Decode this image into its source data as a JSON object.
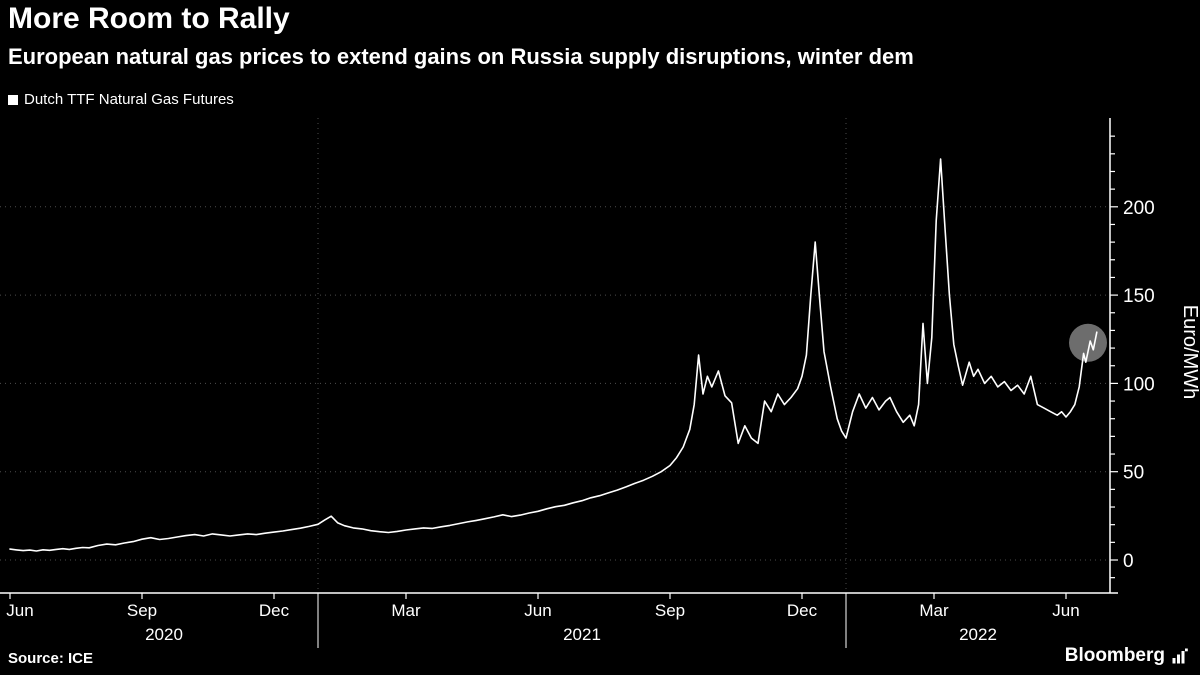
{
  "header": {
    "title": "More Room to Rally",
    "subtitle": "European natural gas prices to extend gains on Russia supply disruptions, winter dem"
  },
  "legend": {
    "label": "Dutch TTF Natural Gas Futures",
    "swatch_color": "#ffffff"
  },
  "footer": {
    "source": "Source: ICE",
    "brand": "Bloomberg"
  },
  "colors": {
    "background": "#000000",
    "text": "#ffffff",
    "line": "#ffffff",
    "grid": "#4d4d4d",
    "highlight": "#9b9b9b"
  },
  "chart_data": {
    "type": "line",
    "title": "More Room to Rally",
    "subtitle": "European natural gas prices to extend gains on Russia supply disruptions, winter dem",
    "xlabel": "",
    "ylabel": "Euro/MWh",
    "legend_position": "top-left",
    "x_unit": "months since Jun 2020",
    "x_axis": {
      "range": [
        0,
        25
      ],
      "tick_months": [
        0,
        3,
        6,
        9,
        12,
        15,
        18,
        21,
        24
      ],
      "tick_labels": [
        "Jun",
        "Sep",
        "Dec",
        "Mar",
        "Jun",
        "Sep",
        "Dec",
        "Mar",
        "Jun"
      ],
      "year_dividers": [
        7,
        19
      ],
      "years": [
        {
          "label": "2020",
          "from": 0,
          "to": 7
        },
        {
          "label": "2021",
          "from": 7,
          "to": 19
        },
        {
          "label": "2022",
          "from": 19,
          "to": 25
        }
      ]
    },
    "y_axis": {
      "label": "Euro/MWh",
      "range": [
        -19,
        250
      ],
      "major_ticks": [
        0,
        50,
        100,
        150,
        200
      ],
      "minor_step": 10,
      "minor_range": [
        -10,
        240
      ],
      "grid": "dotted"
    },
    "highlight_point": {
      "month": 24.5,
      "value": 123,
      "radius": 19,
      "color": "#9b9b9b",
      "opacity": 0.7
    },
    "series": [
      {
        "name": "Dutch TTF Natural Gas Futures",
        "color": "#ffffff",
        "points": [
          [
            0.0,
            6.2
          ],
          [
            0.15,
            5.7
          ],
          [
            0.3,
            5.3
          ],
          [
            0.45,
            5.6
          ],
          [
            0.6,
            5.1
          ],
          [
            0.75,
            5.8
          ],
          [
            0.9,
            5.5
          ],
          [
            1.05,
            6.0
          ],
          [
            1.2,
            6.4
          ],
          [
            1.35,
            6.0
          ],
          [
            1.5,
            6.6
          ],
          [
            1.65,
            7.1
          ],
          [
            1.8,
            6.9
          ],
          [
            2.0,
            8.2
          ],
          [
            2.2,
            9.0
          ],
          [
            2.4,
            8.6
          ],
          [
            2.6,
            9.6
          ],
          [
            2.8,
            10.4
          ],
          [
            3.0,
            11.8
          ],
          [
            3.2,
            12.6
          ],
          [
            3.4,
            11.6
          ],
          [
            3.6,
            12.2
          ],
          [
            3.8,
            13.0
          ],
          [
            4.0,
            13.8
          ],
          [
            4.2,
            14.4
          ],
          [
            4.4,
            13.6
          ],
          [
            4.6,
            14.8
          ],
          [
            4.8,
            14.2
          ],
          [
            5.0,
            13.6
          ],
          [
            5.2,
            14.2
          ],
          [
            5.4,
            14.8
          ],
          [
            5.6,
            14.4
          ],
          [
            5.8,
            15.2
          ],
          [
            6.0,
            15.8
          ],
          [
            6.2,
            16.4
          ],
          [
            6.4,
            17.2
          ],
          [
            6.6,
            18.0
          ],
          [
            6.8,
            19.0
          ],
          [
            7.0,
            20.2
          ],
          [
            7.15,
            22.6
          ],
          [
            7.3,
            24.8
          ],
          [
            7.45,
            21.0
          ],
          [
            7.6,
            19.4
          ],
          [
            7.8,
            18.2
          ],
          [
            8.0,
            17.6
          ],
          [
            8.2,
            16.6
          ],
          [
            8.4,
            16.0
          ],
          [
            8.6,
            15.6
          ],
          [
            8.8,
            16.2
          ],
          [
            9.0,
            17.0
          ],
          [
            9.2,
            17.6
          ],
          [
            9.4,
            18.2
          ],
          [
            9.6,
            17.9
          ],
          [
            9.8,
            18.8
          ],
          [
            10.0,
            19.6
          ],
          [
            10.2,
            20.6
          ],
          [
            10.4,
            21.6
          ],
          [
            10.6,
            22.4
          ],
          [
            10.8,
            23.4
          ],
          [
            11.0,
            24.4
          ],
          [
            11.2,
            25.6
          ],
          [
            11.4,
            24.6
          ],
          [
            11.6,
            25.4
          ],
          [
            11.8,
            26.6
          ],
          [
            12.0,
            27.6
          ],
          [
            12.2,
            29.0
          ],
          [
            12.4,
            30.2
          ],
          [
            12.6,
            31.0
          ],
          [
            12.8,
            32.4
          ],
          [
            13.0,
            33.6
          ],
          [
            13.2,
            35.2
          ],
          [
            13.4,
            36.4
          ],
          [
            13.6,
            38.0
          ],
          [
            13.8,
            39.6
          ],
          [
            14.0,
            41.4
          ],
          [
            14.2,
            43.4
          ],
          [
            14.4,
            45.2
          ],
          [
            14.6,
            47.4
          ],
          [
            14.8,
            50.0
          ],
          [
            15.0,
            53.5
          ],
          [
            15.15,
            58.0
          ],
          [
            15.3,
            64.0
          ],
          [
            15.45,
            74.0
          ],
          [
            15.55,
            88.0
          ],
          [
            15.65,
            116.0
          ],
          [
            15.75,
            94.0
          ],
          [
            15.85,
            104.0
          ],
          [
            15.95,
            98.0
          ],
          [
            16.1,
            107.0
          ],
          [
            16.25,
            93.0
          ],
          [
            16.4,
            89.0
          ],
          [
            16.55,
            66.0
          ],
          [
            16.7,
            76.0
          ],
          [
            16.85,
            69.0
          ],
          [
            17.0,
            66.0
          ],
          [
            17.15,
            90.0
          ],
          [
            17.3,
            84.0
          ],
          [
            17.45,
            94.0
          ],
          [
            17.6,
            88.0
          ],
          [
            17.75,
            92.0
          ],
          [
            17.9,
            97.0
          ],
          [
            18.0,
            104.0
          ],
          [
            18.1,
            116.0
          ],
          [
            18.2,
            150.0
          ],
          [
            18.3,
            180.0
          ],
          [
            18.4,
            148.0
          ],
          [
            18.5,
            118.0
          ],
          [
            18.65,
            98.0
          ],
          [
            18.8,
            80.0
          ],
          [
            18.9,
            73.0
          ],
          [
            19.0,
            69.0
          ],
          [
            19.15,
            84.0
          ],
          [
            19.3,
            94.0
          ],
          [
            19.45,
            86.0
          ],
          [
            19.6,
            92.0
          ],
          [
            19.75,
            85.0
          ],
          [
            19.9,
            90.0
          ],
          [
            20.0,
            92.0
          ],
          [
            20.15,
            84.0
          ],
          [
            20.3,
            78.0
          ],
          [
            20.45,
            82.0
          ],
          [
            20.55,
            76.0
          ],
          [
            20.65,
            88.0
          ],
          [
            20.75,
            134.0
          ],
          [
            20.85,
            100.0
          ],
          [
            20.95,
            126.0
          ],
          [
            21.05,
            192.0
          ],
          [
            21.15,
            227.0
          ],
          [
            21.25,
            188.0
          ],
          [
            21.35,
            150.0
          ],
          [
            21.45,
            122.0
          ],
          [
            21.55,
            110.0
          ],
          [
            21.65,
            99.0
          ],
          [
            21.8,
            112.0
          ],
          [
            21.9,
            104.0
          ],
          [
            22.0,
            108.0
          ],
          [
            22.15,
            100.0
          ],
          [
            22.3,
            104.0
          ],
          [
            22.45,
            98.0
          ],
          [
            22.6,
            101.0
          ],
          [
            22.75,
            96.0
          ],
          [
            22.9,
            99.0
          ],
          [
            23.05,
            94.0
          ],
          [
            23.2,
            104.0
          ],
          [
            23.35,
            88.0
          ],
          [
            23.5,
            86.0
          ],
          [
            23.65,
            84.0
          ],
          [
            23.8,
            82.0
          ],
          [
            23.9,
            84.0
          ],
          [
            24.0,
            81.0
          ],
          [
            24.1,
            84.0
          ],
          [
            24.2,
            88.0
          ],
          [
            24.3,
            98.0
          ],
          [
            24.4,
            117.0
          ],
          [
            24.45,
            112.0
          ],
          [
            24.55,
            124.0
          ],
          [
            24.62,
            119.0
          ],
          [
            24.7,
            129.0
          ]
        ]
      }
    ]
  }
}
